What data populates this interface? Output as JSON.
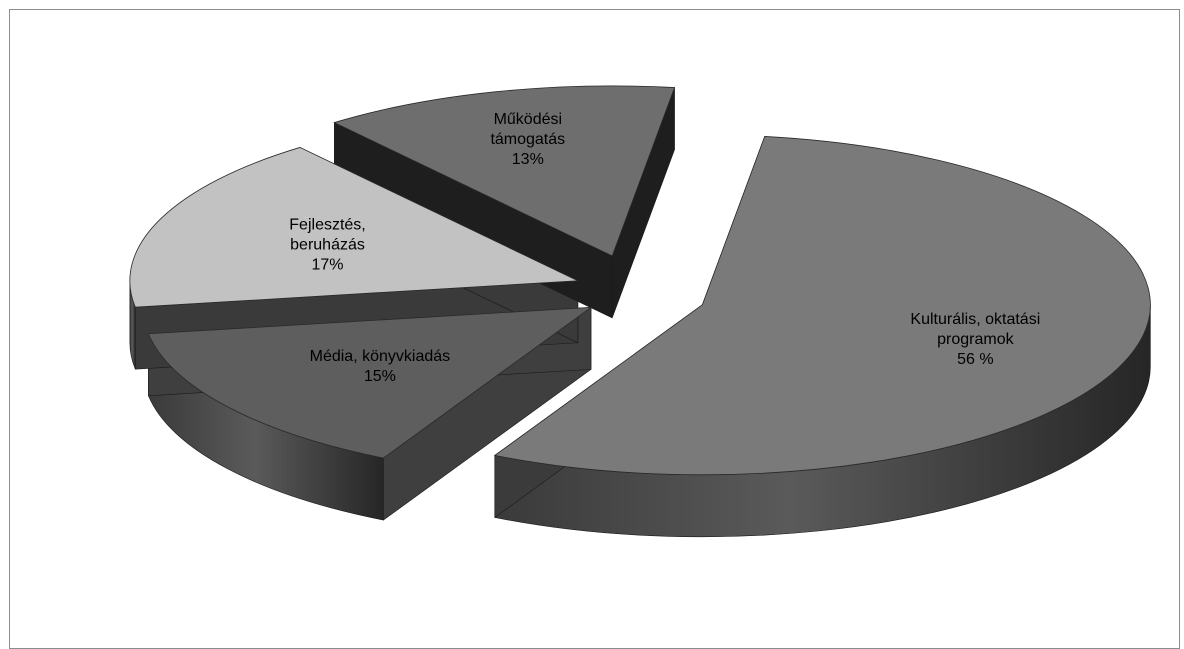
{
  "chart_data": {
    "type": "pie",
    "title": "",
    "legend": "none",
    "style": "3d-exploded",
    "slices": [
      {
        "label": [
          "Kulturális, oktatási",
          "programok",
          "56 %"
        ],
        "value": 56,
        "color": "#7a7a7a"
      },
      {
        "label": [
          "Média, könyvkiadás",
          "15%"
        ],
        "value": 15,
        "color": "#5e5e5e"
      },
      {
        "label": [
          "Fejlesztés,",
          "beruházás",
          "17%"
        ],
        "value": 17,
        "color": "#c2c2c2"
      },
      {
        "label": [
          "Működési",
          "támogatás",
          "13%"
        ],
        "value": 13,
        "color": "#6e6e6e"
      }
    ]
  }
}
